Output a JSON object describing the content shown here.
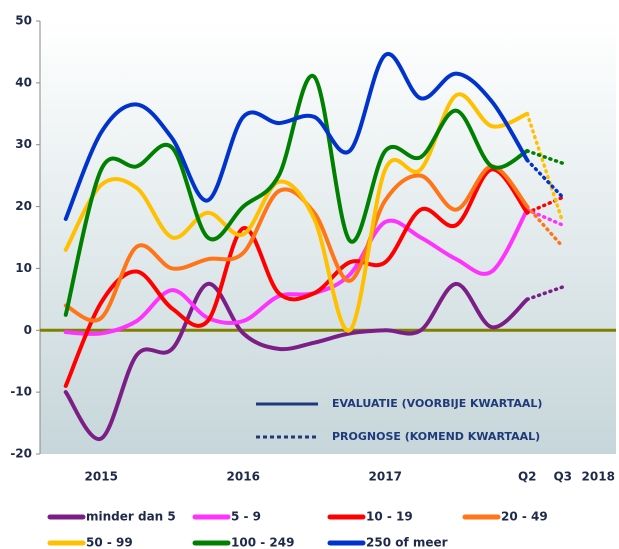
{
  "chart_data": {
    "type": "line",
    "smooth": true,
    "categories": [
      null,
      "2015",
      null,
      null,
      null,
      "2016",
      null,
      null,
      null,
      "2017",
      null,
      null,
      null,
      "Q2",
      "Q3",
      "2018"
    ],
    "forecast_from": 13,
    "series": [
      {
        "name": "minder dan 5",
        "color": "#7b1f86",
        "values": [
          -10,
          -17.5,
          -4,
          -3,
          7.5,
          -0.5,
          -3,
          -2,
          -0.5,
          0,
          0,
          7.5,
          0.5,
          5,
          7,
          null
        ]
      },
      {
        "name": "5 - 9",
        "color": "#ff33ff",
        "values": [
          -0.3,
          -0.5,
          1.5,
          6.5,
          2,
          1.5,
          5.5,
          6,
          9,
          17.5,
          15,
          11.5,
          9.5,
          19.5,
          17,
          null
        ]
      },
      {
        "name": "10 - 19",
        "color": "#ff0000",
        "values": [
          -9,
          4.5,
          9.5,
          3.5,
          1.5,
          16.5,
          6,
          6,
          11,
          11,
          19.5,
          17,
          26,
          19,
          21.5,
          null
        ]
      },
      {
        "name": "20 - 49",
        "color": "#ff7518",
        "values": [
          4,
          2,
          13.5,
          10,
          11.5,
          12.5,
          22.5,
          19,
          8,
          21,
          25,
          19.5,
          26.5,
          20,
          13.5,
          null
        ]
      },
      {
        "name": "50 - 99",
        "color": "#ffc000",
        "values": [
          13,
          23.5,
          23,
          15,
          19,
          15.5,
          24,
          18,
          0,
          26,
          26,
          38,
          33,
          35,
          17.5,
          null
        ]
      },
      {
        "name": "100 - 249",
        "color": "#008000",
        "values": [
          2.5,
          26,
          26.5,
          29.5,
          15,
          20,
          25,
          41,
          14.5,
          29,
          28,
          35.5,
          26.5,
          29,
          27,
          null
        ]
      },
      {
        "name": "250 of meer",
        "color": "#0033cc",
        "values": [
          18,
          32,
          36.5,
          31,
          21,
          34.5,
          33.5,
          34.5,
          29,
          44.5,
          37.5,
          41.5,
          37,
          27.5,
          21.5,
          null
        ]
      }
    ],
    "ylim": [
      -20,
      50
    ],
    "yticks": [
      -20,
      -10,
      0,
      10,
      20,
      30,
      40,
      50
    ],
    "zero_line_color": "#808000",
    "annotations": [
      {
        "text": "EVALUATIE (VOORBIJE KWARTAAL)",
        "style": "solid",
        "color": "#1f3a7a"
      },
      {
        "text": "PROGNOSE (KOMEND KWARTAAL)",
        "style": "dotted",
        "color": "#1f3a7a"
      }
    ]
  }
}
